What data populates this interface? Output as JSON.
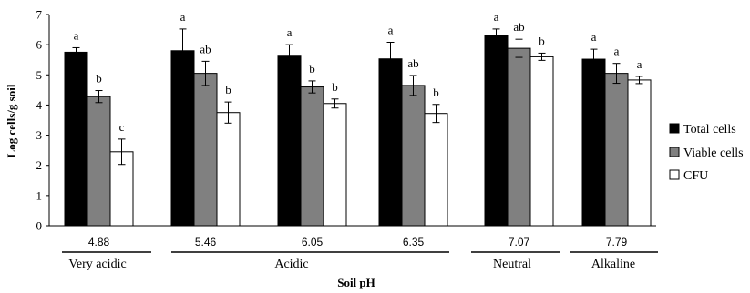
{
  "chart_data": {
    "type": "bar",
    "xlabel": "Soil pH",
    "ylabel": "Log cells/g soil",
    "ylim": [
      0,
      7
    ],
    "yticks": [
      0,
      1,
      2,
      3,
      4,
      5,
      6,
      7
    ],
    "categories": [
      "4.88",
      "5.46",
      "6.05",
      "6.35",
      "7.07",
      "7.79"
    ],
    "category_groups": [
      {
        "label": "Very acidic",
        "members": [
          "4.88"
        ]
      },
      {
        "label": "Acidic",
        "members": [
          "5.46",
          "6.05",
          "6.35"
        ]
      },
      {
        "label": "Neutral",
        "members": [
          "7.07"
        ]
      },
      {
        "label": "Alkaline",
        "members": [
          "7.79"
        ]
      }
    ],
    "legend_position": "right",
    "grid": false,
    "series": [
      {
        "name": "Total cells",
        "color": "#000000",
        "values": [
          5.75,
          5.8,
          5.65,
          5.53,
          6.3,
          5.52
        ],
        "errors": [
          0.15,
          0.72,
          0.35,
          0.55,
          0.22,
          0.33
        ],
        "significance": [
          "a",
          "a",
          "a",
          "a",
          "a",
          "a"
        ]
      },
      {
        "name": "Viable cells",
        "color": "#808080",
        "values": [
          4.28,
          5.05,
          4.6,
          4.65,
          5.88,
          5.05
        ],
        "errors": [
          0.2,
          0.4,
          0.2,
          0.33,
          0.3,
          0.33
        ],
        "significance": [
          "b",
          "ab",
          "b",
          "ab",
          "ab",
          "a"
        ]
      },
      {
        "name": "CFU",
        "color": "#ffffff",
        "values": [
          2.45,
          3.75,
          4.05,
          3.72,
          5.6,
          4.83
        ],
        "errors": [
          0.42,
          0.35,
          0.15,
          0.3,
          0.12,
          0.12
        ],
        "significance": [
          "c",
          "b",
          "b",
          "b",
          "b",
          "a"
        ]
      }
    ]
  }
}
